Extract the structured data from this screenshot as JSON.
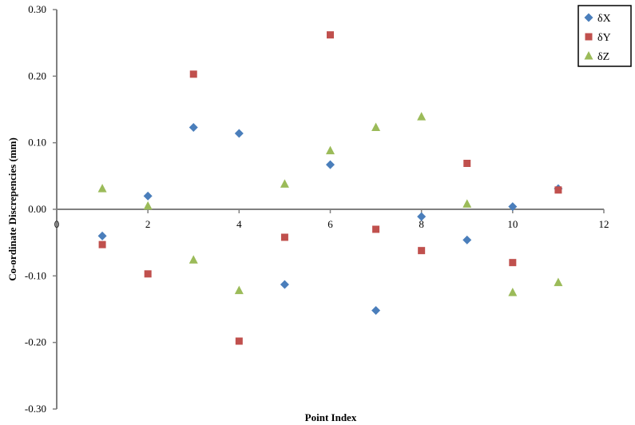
{
  "chart_data": {
    "type": "scatter",
    "title": "",
    "xlabel": "Point Index",
    "ylabel": "Co-ordinate Discrepencies (mm)",
    "xlim": [
      0,
      12
    ],
    "ylim": [
      -0.3,
      0.3
    ],
    "x_ticks": [
      0,
      2,
      4,
      6,
      8,
      10,
      12
    ],
    "y_ticks": [
      0.3,
      0.2,
      0.1,
      0.0,
      -0.1,
      -0.2,
      -0.3
    ],
    "y_tick_labels": [
      "0.30",
      "0.20",
      "0.10",
      "0.00",
      "-0.10",
      "-0.20",
      "-0.30"
    ],
    "grid": false,
    "legend_position": "top-right",
    "x": [
      1,
      2,
      3,
      4,
      5,
      6,
      7,
      8,
      9,
      10,
      11
    ],
    "series": [
      {
        "name": "δX",
        "marker": "diamond",
        "color": "#4A7EBB",
        "values": [
          -0.04,
          0.02,
          0.123,
          0.114,
          -0.113,
          0.067,
          -0.152,
          -0.011,
          -0.046,
          0.004,
          0.031
        ]
      },
      {
        "name": "δY",
        "marker": "square",
        "color": "#C0504D",
        "values": [
          -0.053,
          -0.097,
          0.203,
          -0.198,
          -0.042,
          0.262,
          -0.03,
          -0.062,
          0.069,
          -0.08,
          0.029
        ]
      },
      {
        "name": "δZ",
        "marker": "triangle",
        "color": "#9BBB59",
        "values": [
          0.031,
          0.005,
          -0.076,
          -0.122,
          0.038,
          0.088,
          0.123,
          0.139,
          0.008,
          -0.125,
          -0.11
        ]
      }
    ]
  }
}
